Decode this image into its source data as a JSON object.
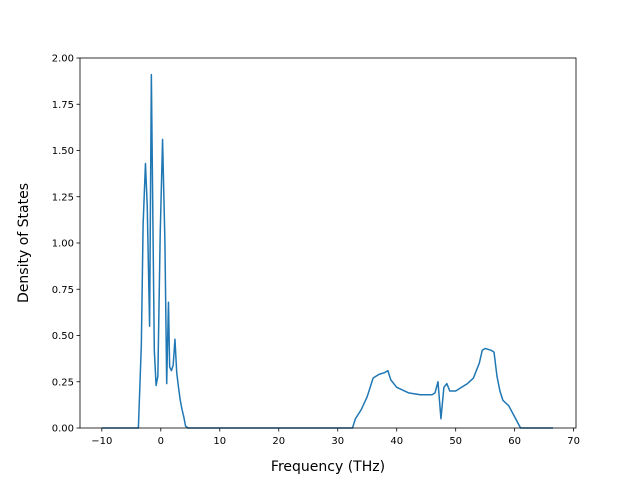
{
  "chart_data": {
    "type": "line",
    "title": "",
    "xlabel": "Frequency (THz)",
    "ylabel": "Density of States",
    "xlim": [
      -13.7,
      70.4
    ],
    "ylim": [
      0,
      2.0
    ],
    "x_ticks": [
      -10,
      0,
      10,
      20,
      30,
      40,
      50,
      60,
      70
    ],
    "x_tick_labels": [
      "−10",
      "0",
      "10",
      "20",
      "30",
      "40",
      "50",
      "60",
      "70"
    ],
    "y_ticks": [
      0,
      0.25,
      0.5,
      0.75,
      1.0,
      1.25,
      1.5,
      1.75,
      2.0
    ],
    "y_tick_labels": [
      "0.00",
      "0.25",
      "0.50",
      "0.75",
      "1.00",
      "1.25",
      "1.50",
      "1.75",
      "2.00"
    ],
    "grid": false,
    "legend": "none",
    "color": "#1f77b4",
    "series": [
      {
        "x": [
          -10.0,
          -3.8,
          -3.3,
          -3.0,
          -2.6,
          -2.3,
          -1.9,
          -1.6,
          -1.3,
          -1.1,
          -0.8,
          -0.5,
          -0.1,
          0.3,
          0.7,
          1.0,
          1.3,
          1.5,
          1.8,
          2.1,
          2.4,
          2.7,
          3.0,
          3.3,
          3.6,
          3.9,
          4.2,
          4.6,
          5.0,
          5.4,
          5.8,
          6.2,
          10.0,
          20.0,
          30.0,
          32.5,
          33.0,
          34.0,
          35.0,
          35.5,
          36.0,
          37.0,
          38.0,
          38.5,
          39.0,
          40.0,
          42.0,
          44.0,
          46.0,
          46.5,
          47.0,
          47.5,
          48.0,
          48.5,
          49.0,
          50.0,
          51.0,
          52.0,
          53.0,
          54.0,
          54.5,
          55.0,
          56.0,
          56.5,
          57.0,
          57.5,
          58.0,
          59.0,
          59.5,
          60.0,
          61.0,
          66.5
        ],
        "y": [
          0.0,
          0.0,
          0.45,
          1.1,
          1.43,
          1.2,
          0.55,
          1.91,
          1.0,
          0.42,
          0.23,
          0.28,
          1.05,
          1.56,
          1.0,
          0.24,
          0.68,
          0.33,
          0.31,
          0.34,
          0.48,
          0.3,
          0.22,
          0.15,
          0.1,
          0.06,
          0.01,
          0.0,
          0.0,
          0.0,
          0.0,
          0.0,
          0.0,
          0.0,
          0.0,
          0.0,
          0.05,
          0.1,
          0.17,
          0.22,
          0.27,
          0.29,
          0.3,
          0.31,
          0.26,
          0.22,
          0.19,
          0.18,
          0.18,
          0.19,
          0.25,
          0.05,
          0.22,
          0.24,
          0.2,
          0.2,
          0.22,
          0.24,
          0.27,
          0.35,
          0.42,
          0.43,
          0.42,
          0.41,
          0.28,
          0.2,
          0.15,
          0.12,
          0.09,
          0.06,
          0.0,
          0.0
        ]
      }
    ]
  }
}
